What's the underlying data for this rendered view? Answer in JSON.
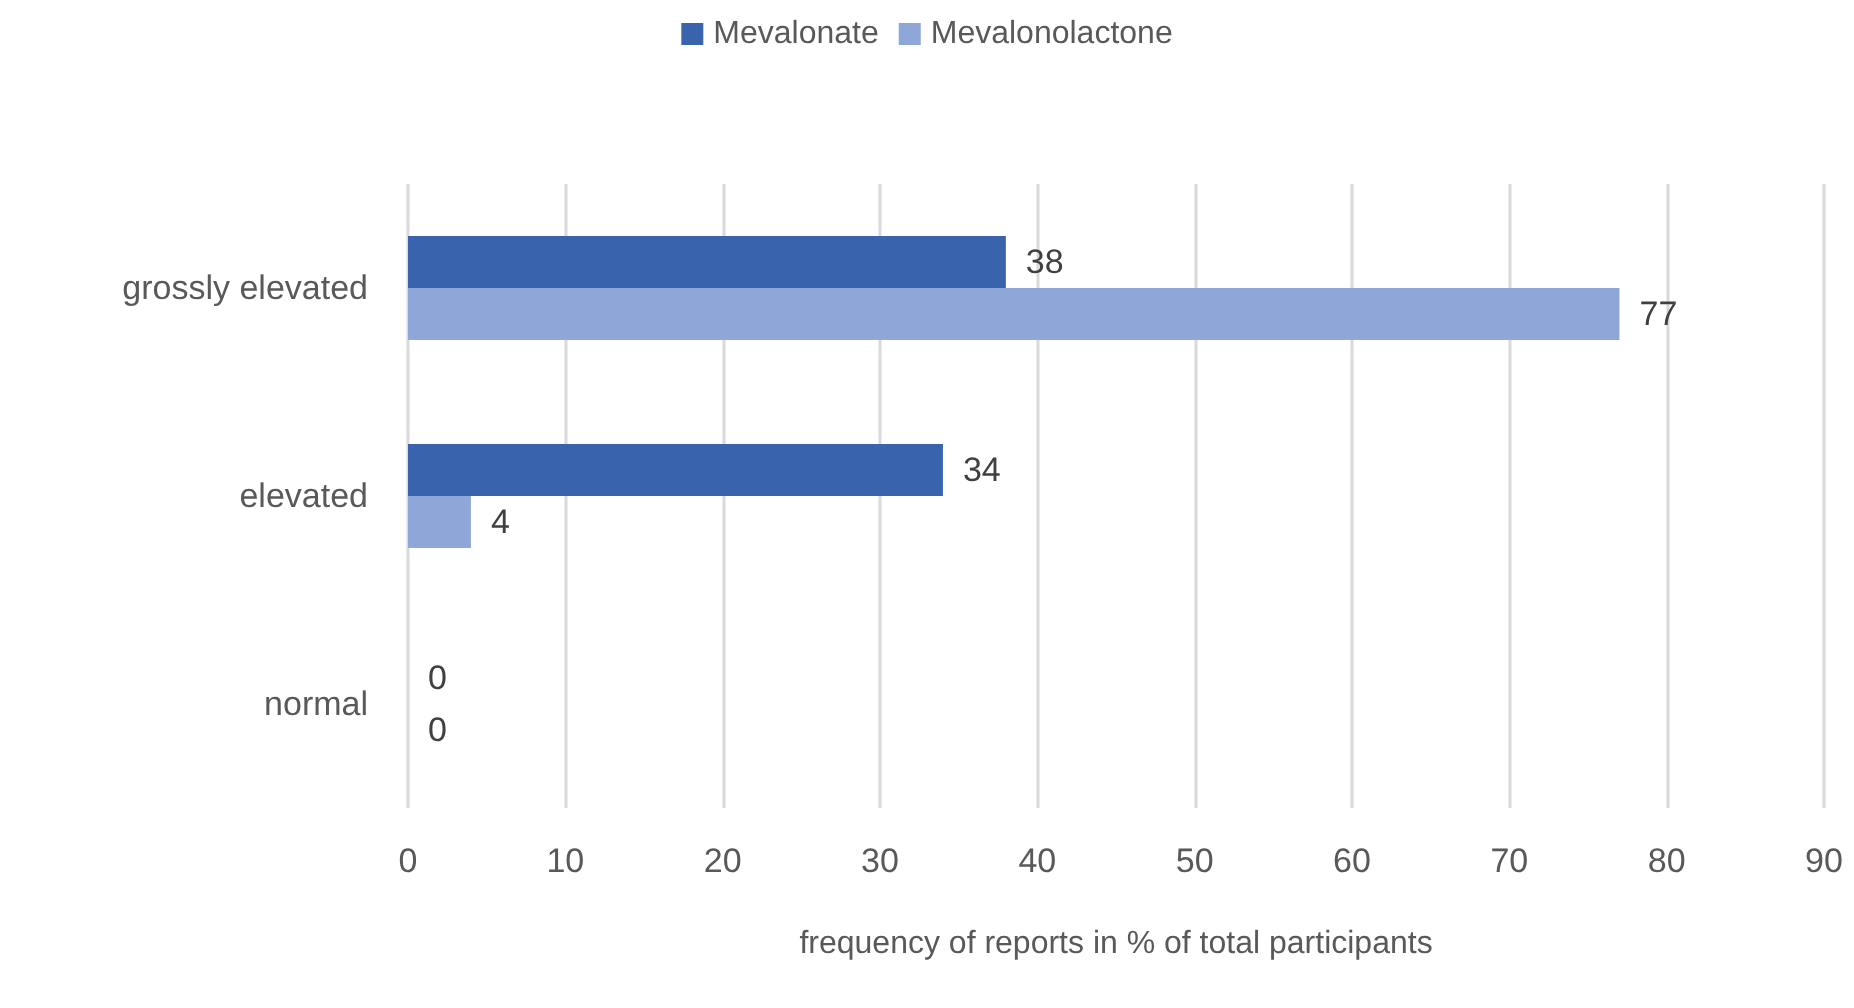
{
  "chart_data": {
    "type": "bar",
    "orientation": "horizontal",
    "categories": [
      "grossly elevated",
      "elevated",
      "normal"
    ],
    "series": [
      {
        "name": "Mevalonate",
        "color": "#3a63ad",
        "values": [
          38,
          34,
          0
        ]
      },
      {
        "name": "Mevalonolactone",
        "color": "#8fa7d8",
        "values": [
          77,
          4,
          0
        ]
      }
    ],
    "xlabel": "frequency of reports in % of total participants",
    "xlim": [
      0,
      90
    ],
    "xticks": [
      0,
      10,
      20,
      30,
      40,
      50,
      60,
      70,
      80,
      90
    ],
    "grid": "x",
    "legend": "top",
    "data_labels": true
  }
}
